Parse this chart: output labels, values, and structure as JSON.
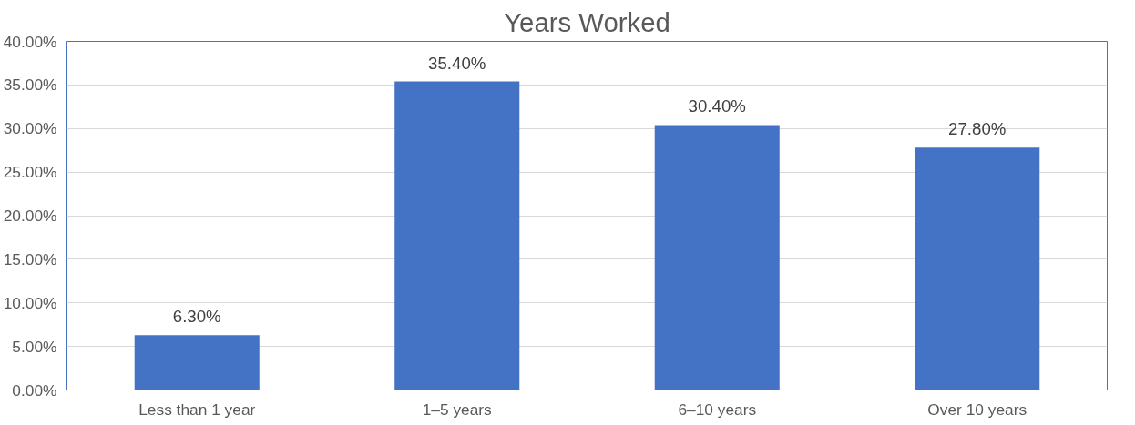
{
  "chart_data": {
    "type": "bar",
    "title": "Years Worked",
    "categories": [
      "Less than 1 year",
      "1–5 years",
      "6–10 years",
      "Over 10 years"
    ],
    "values": [
      6.3,
      35.4,
      30.4,
      27.8
    ],
    "value_labels": [
      "6.30%",
      "35.40%",
      "30.40%",
      "27.80%"
    ],
    "color": "#4472c4",
    "ylim": [
      0,
      40
    ],
    "yticks": [
      {
        "value": 0,
        "label": "0.00%"
      },
      {
        "value": 5,
        "label": "5.00%"
      },
      {
        "value": 10,
        "label": "10.00%"
      },
      {
        "value": 15,
        "label": "15.00%"
      },
      {
        "value": 20,
        "label": "20.00%"
      },
      {
        "value": 25,
        "label": "25.00%"
      },
      {
        "value": 30,
        "label": "30.00%"
      },
      {
        "value": 35,
        "label": "35.00%"
      },
      {
        "value": 40,
        "label": "40.00%"
      }
    ],
    "grid": "y"
  }
}
